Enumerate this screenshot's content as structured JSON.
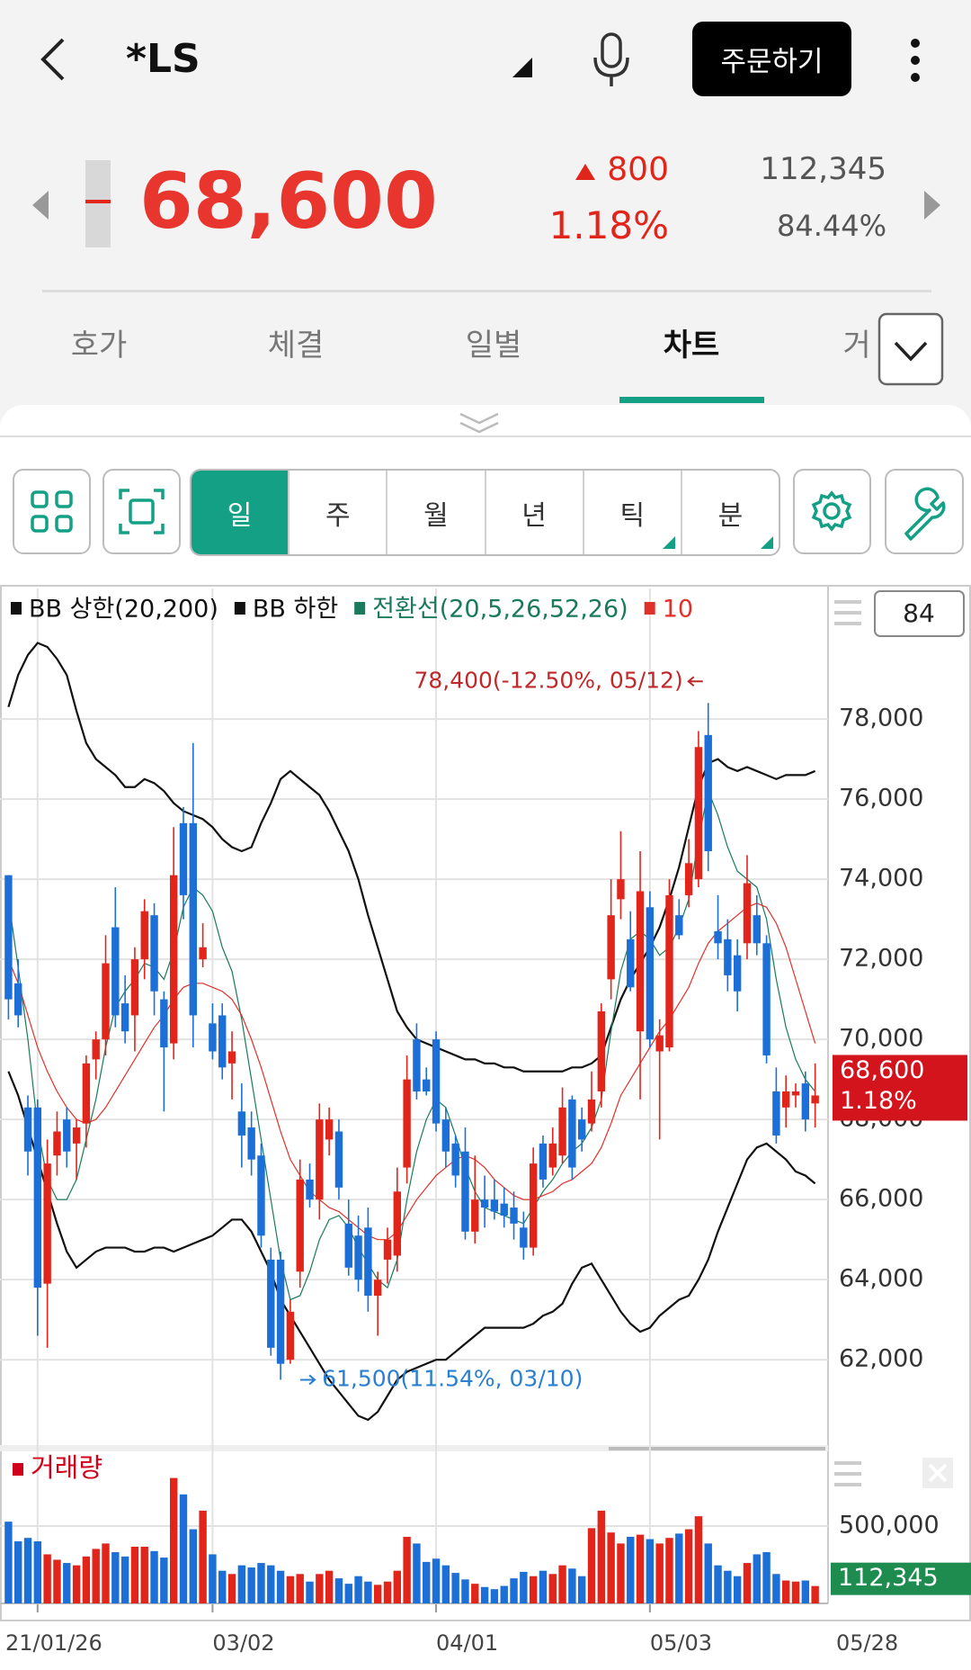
{
  "header": {
    "title": "*LS",
    "order_button": "주문하기",
    "price": "68,600",
    "change": "800",
    "change_rate": "1.18%",
    "volume": "112,345",
    "ratio": "84.44%"
  },
  "tabs": [
    "호가",
    "체결",
    "일별",
    "차트",
    "거"
  ],
  "active_tab": 3,
  "periods": [
    "일",
    "주",
    "월",
    "년",
    "틱",
    "분"
  ],
  "active_period": 0,
  "count_box": "84",
  "chart_data": [
    {
      "type": "candlestick",
      "up_color": "#e1251b",
      "down_color": "#1c6fd6",
      "grid": true,
      "ylim": [
        59870,
        81260
      ],
      "yticks": [
        {
          "value": 62000,
          "label": "62,000"
        },
        {
          "value": 64000,
          "label": "64,000"
        },
        {
          "value": 66000,
          "label": "66,000"
        },
        {
          "value": 68000,
          "label": "68,000"
        },
        {
          "value": 70000,
          "label": "70,000"
        },
        {
          "value": 72000,
          "label": "72,000"
        },
        {
          "value": 74000,
          "label": "74,000"
        },
        {
          "value": 76000,
          "label": "76,000"
        },
        {
          "value": 78000,
          "label": "78,000"
        }
      ],
      "xticks": [
        {
          "index": 3,
          "label": "21/01/26"
        },
        {
          "index": 21,
          "label": "03/02"
        },
        {
          "index": 44,
          "label": "04/01"
        },
        {
          "index": 66,
          "label": "05/03"
        }
      ],
      "last_date": "05/28",
      "annotations": [
        {
          "index": 72,
          "value": 78400,
          "label": "78,400(-12.50%, 05/12)",
          "color": "#c0282a"
        },
        {
          "index": 28,
          "value": 61500,
          "label": "61,500(11.54%, 03/10)",
          "color": "#2a7fd0"
        }
      ],
      "price_tag": {
        "value": 68600,
        "labels": [
          "68,600",
          "1.18%"
        ],
        "color": "#d4141c"
      },
      "candles": [
        [
          74100,
          74100,
          70500,
          71000
        ],
        [
          71400,
          72000,
          70300,
          70600
        ],
        [
          68300,
          68600,
          66600,
          67200
        ],
        [
          68300,
          68500,
          62600,
          63800
        ],
        [
          63900,
          67500,
          62300,
          66900
        ],
        [
          67100,
          68200,
          66600,
          67700
        ],
        [
          68000,
          68300,
          66800,
          67200
        ],
        [
          67400,
          68000,
          66500,
          67800
        ],
        [
          67900,
          69600,
          67300,
          69400
        ],
        [
          69500,
          70200,
          69000,
          70000
        ],
        [
          70000,
          72600,
          69600,
          71900
        ],
        [
          72800,
          73800,
          70300,
          70600
        ],
        [
          70900,
          71600,
          69900,
          70200
        ],
        [
          70600,
          72300,
          69700,
          72000
        ],
        [
          72000,
          73500,
          71500,
          73200
        ],
        [
          73100,
          73400,
          70600,
          71200
        ],
        [
          71000,
          71200,
          68200,
          69800
        ],
        [
          69900,
          75300,
          69500,
          74100
        ],
        [
          75400,
          75800,
          73000,
          73600
        ],
        [
          75400,
          77400,
          69800,
          70600
        ],
        [
          72000,
          72900,
          71800,
          72300
        ],
        [
          70400,
          70900,
          69500,
          69700
        ],
        [
          70600,
          70900,
          69000,
          69300
        ],
        [
          69400,
          70200,
          68500,
          69700
        ],
        [
          68200,
          68900,
          66800,
          67600
        ],
        [
          67800,
          68200,
          66600,
          67000
        ],
        [
          67100,
          67400,
          64800,
          65100
        ],
        [
          64500,
          64800,
          62100,
          62300
        ],
        [
          64500,
          64700,
          61500,
          61900
        ],
        [
          62000,
          63500,
          61900,
          63200
        ],
        [
          64200,
          67000,
          63800,
          66500
        ],
        [
          66500,
          66900,
          65800,
          66000
        ],
        [
          66000,
          68400,
          65500,
          68000
        ],
        [
          67500,
          68300,
          67100,
          68000
        ],
        [
          67700,
          68000,
          66000,
          66300
        ],
        [
          65400,
          66000,
          64100,
          64300
        ],
        [
          65100,
          65600,
          63700,
          64000
        ],
        [
          65300,
          65800,
          63200,
          63600
        ],
        [
          63600,
          64200,
          62600,
          64000
        ],
        [
          64500,
          65300,
          63900,
          65000
        ],
        [
          64600,
          66800,
          64200,
          66200
        ],
        [
          66800,
          69600,
          66400,
          69000
        ],
        [
          70000,
          70400,
          68500,
          68700
        ],
        [
          69000,
          69300,
          68600,
          68700
        ],
        [
          70000,
          70200,
          67700,
          67900
        ],
        [
          68000,
          68300,
          66800,
          67200
        ],
        [
          67400,
          67600,
          66300,
          66600
        ],
        [
          67200,
          67800,
          65000,
          65200
        ],
        [
          65200,
          67100,
          64900,
          66000
        ],
        [
          66000,
          66600,
          65300,
          65800
        ],
        [
          66000,
          66500,
          65500,
          65700
        ],
        [
          65900,
          66300,
          65300,
          65600
        ],
        [
          65800,
          66200,
          65000,
          65400
        ],
        [
          65300,
          65700,
          64500,
          64800
        ],
        [
          64800,
          67300,
          64600,
          66900
        ],
        [
          67400,
          67600,
          66300,
          66500
        ],
        [
          66800,
          67800,
          66600,
          67400
        ],
        [
          67100,
          68800,
          66900,
          68300
        ],
        [
          68500,
          68600,
          66500,
          66800
        ],
        [
          68000,
          68300,
          67200,
          67500
        ],
        [
          67900,
          69200,
          67700,
          68500
        ],
        [
          68700,
          70900,
          68300,
          70700
        ],
        [
          71500,
          74000,
          71000,
          73100
        ],
        [
          73500,
          75200,
          73000,
          74000
        ],
        [
          72500,
          73200,
          71200,
          71300
        ],
        [
          70200,
          74700,
          68500,
          73700
        ],
        [
          73300,
          73700,
          69800,
          70000
        ],
        [
          69700,
          70500,
          67500,
          70100
        ],
        [
          69800,
          74000,
          69700,
          73600
        ],
        [
          73100,
          73500,
          72500,
          72600
        ],
        [
          73600,
          75000,
          73300,
          74400
        ],
        [
          74000,
          77700,
          73800,
          77300
        ],
        [
          77600,
          78400,
          74200,
          74700
        ],
        [
          72700,
          73600,
          72000,
          72400
        ],
        [
          72500,
          73000,
          71200,
          71600
        ],
        [
          72100,
          72500,
          70700,
          71200
        ],
        [
          72400,
          74600,
          72000,
          73900
        ],
        [
          73100,
          73600,
          72100,
          72400
        ],
        [
          72400,
          72600,
          69400,
          69600
        ],
        [
          68700,
          69300,
          67400,
          67600
        ],
        [
          68300,
          69100,
          67800,
          68700
        ],
        [
          68600,
          68900,
          68300,
          68700
        ],
        [
          68900,
          69200,
          67700,
          68000
        ],
        [
          68400,
          69400,
          67800,
          68600
        ]
      ],
      "series": [
        {
          "name": "BB 상한(20,200)",
          "color": "#111111",
          "values": [
            78300,
            79100,
            79600,
            79900,
            79800,
            79500,
            79100,
            78200,
            77400,
            77000,
            76800,
            76600,
            76300,
            76300,
            76500,
            76400,
            76200,
            75900,
            75700,
            75600,
            75500,
            75300,
            75000,
            74800,
            74700,
            74800,
            75400,
            75900,
            76500,
            76700,
            76500,
            76300,
            76100,
            75700,
            75200,
            74700,
            74000,
            73100,
            72300,
            71500,
            70700,
            70300,
            70000,
            69900,
            69800,
            69700,
            69600,
            69500,
            69500,
            69400,
            69400,
            69300,
            69300,
            69200,
            69200,
            69200,
            69200,
            69200,
            69300,
            69300,
            69400,
            69600,
            70300,
            71000,
            71500,
            71900,
            72300,
            72800,
            73500,
            74300,
            75300,
            76300,
            76900,
            77000,
            76800,
            76700,
            76800,
            76700,
            76600,
            76500,
            76600,
            76600,
            76600,
            76700
          ]
        },
        {
          "name": "BB 하한",
          "color": "#111111",
          "values": [
            69200,
            68600,
            67800,
            67000,
            66200,
            65400,
            64700,
            64300,
            64500,
            64700,
            64800,
            64800,
            64800,
            64700,
            64700,
            64800,
            64800,
            64700,
            64800,
            64900,
            65000,
            65100,
            65300,
            65500,
            65500,
            65200,
            64700,
            64200,
            63500,
            63100,
            62700,
            62300,
            61900,
            61500,
            61200,
            60900,
            60600,
            60500,
            60700,
            61100,
            61500,
            61700,
            61800,
            61900,
            62000,
            62000,
            62200,
            62400,
            62600,
            62800,
            62800,
            62800,
            62800,
            62800,
            62900,
            63100,
            63200,
            63400,
            63900,
            64300,
            64400,
            64000,
            63600,
            63200,
            62900,
            62700,
            62800,
            63100,
            63300,
            63500,
            63600,
            64000,
            64500,
            65200,
            65800,
            66400,
            67000,
            67300,
            67400,
            67200,
            67000,
            66700,
            66600,
            66400
          ]
        },
        {
          "name": "전환선(20,5,26,52,26)",
          "color": "#1a7a5c",
          "values": [
            73500,
            71800,
            70000,
            67800,
            66500,
            66000,
            66000,
            66500,
            67500,
            68500,
            69800,
            70800,
            71200,
            71500,
            71900,
            71800,
            71500,
            72200,
            73300,
            73800,
            73600,
            73200,
            72300,
            71700,
            70500,
            69000,
            67500,
            66000,
            64500,
            63500,
            63600,
            64200,
            65000,
            65500,
            65600,
            65300,
            64800,
            64400,
            64000,
            63800,
            64500,
            66000,
            67200,
            68000,
            68500,
            68300,
            67600,
            66800,
            66200,
            65800,
            65700,
            65600,
            65500,
            65400,
            65800,
            66200,
            66500,
            66900,
            67200,
            67400,
            67800,
            68500,
            70200,
            71700,
            72500,
            72700,
            72500,
            72100,
            72300,
            72800,
            73500,
            75000,
            76200,
            75600,
            74800,
            74200,
            74000,
            73800,
            73000,
            71500,
            70300,
            69500,
            69000,
            68700
          ]
        },
        {
          "name": "10",
          "color": "#e0302a",
          "values": [
            72000,
            71400,
            70600,
            69800,
            69200,
            68700,
            68300,
            68000,
            67900,
            68000,
            68300,
            68700,
            69100,
            69500,
            69900,
            70300,
            70600,
            71000,
            71300,
            71400,
            71400,
            71300,
            71200,
            71000,
            70600,
            70000,
            69300,
            68500,
            67700,
            67000,
            66600,
            66200,
            66000,
            65800,
            65700,
            65500,
            65300,
            65100,
            65000,
            65000,
            65200,
            65600,
            66000,
            66300,
            66600,
            66800,
            67000,
            67100,
            67000,
            66800,
            66500,
            66300,
            66100,
            66000,
            66000,
            66100,
            66200,
            66400,
            66500,
            66700,
            66900,
            67300,
            67900,
            68600,
            69000,
            69400,
            69800,
            70200,
            70500,
            70900,
            71300,
            71900,
            72400,
            72700,
            72900,
            73100,
            73300,
            73400,
            73300,
            72900,
            72300,
            71500,
            70700,
            69900
          ]
        }
      ]
    },
    {
      "type": "bar",
      "title": "거래량",
      "title_color": "#d0021b",
      "ylim": [
        0,
        982000
      ],
      "yticks": [
        {
          "value": 500000,
          "label": "500,000"
        }
      ],
      "last_label": "112,345",
      "last_color": "#1e8c4e",
      "values": [
        528000,
        401000,
        423000,
        401000,
        317000,
        282000,
        261000,
        246000,
        303000,
        352000,
        387000,
        331000,
        303000,
        366000,
        366000,
        338000,
        296000,
        810000,
        704000,
        479000,
        599000,
        317000,
        211000,
        190000,
        246000,
        232000,
        261000,
        246000,
        211000,
        176000,
        190000,
        141000,
        190000,
        211000,
        162000,
        127000,
        176000,
        141000,
        120000,
        141000,
        211000,
        430000,
        387000,
        268000,
        289000,
        246000,
        197000,
        155000,
        127000,
        106000,
        92000,
        113000,
        162000,
        204000,
        176000,
        211000,
        190000,
        246000,
        225000,
        176000,
        486000,
        599000,
        458000,
        387000,
        430000,
        444000,
        415000,
        387000,
        423000,
        451000,
        479000,
        563000,
        387000,
        246000,
        211000,
        176000,
        261000,
        317000,
        331000,
        190000,
        148000,
        141000,
        148000,
        112345
      ]
    }
  ]
}
